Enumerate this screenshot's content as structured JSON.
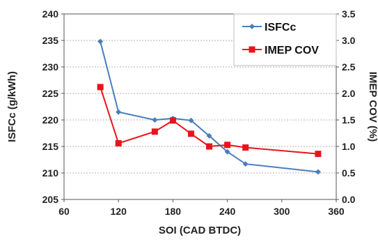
{
  "chart_data": {
    "type": "line",
    "xlabel": "SOI (CAD BTDC)",
    "ylabel": "ISFCc (g/kWh)",
    "y2label": "IMEP COV (%)",
    "xlim": [
      60,
      360
    ],
    "xticks": [
      60,
      120,
      180,
      240,
      300,
      360
    ],
    "ylim": [
      205,
      240
    ],
    "yticks": [
      205,
      210,
      215,
      220,
      225,
      230,
      235,
      240
    ],
    "y2lim": [
      0.0,
      3.5
    ],
    "y2ticks": [
      "0.0",
      "0.5",
      "1.0",
      "1.5",
      "2.0",
      "2.5",
      "3.0",
      "3.5"
    ],
    "grid": "horizontal dashed",
    "legend_position": "top-right",
    "series": [
      {
        "name": "ISFCc",
        "axis": "left",
        "color": "#4a7ebb",
        "marker": "diamond",
        "x": [
          100,
          120,
          160,
          180,
          200,
          220,
          240,
          260,
          340
        ],
        "y": [
          234.8,
          221.5,
          220.0,
          220.3,
          219.9,
          217.0,
          214.0,
          211.7,
          210.2
        ]
      },
      {
        "name": "IMEP COV",
        "axis": "right",
        "color": "#e8141c",
        "marker": "square",
        "x": [
          100,
          120,
          160,
          180,
          200,
          220,
          240,
          260,
          340
        ],
        "y": [
          2.12,
          1.06,
          1.28,
          1.49,
          1.24,
          1.0,
          1.03,
          0.98,
          0.86
        ]
      }
    ]
  }
}
